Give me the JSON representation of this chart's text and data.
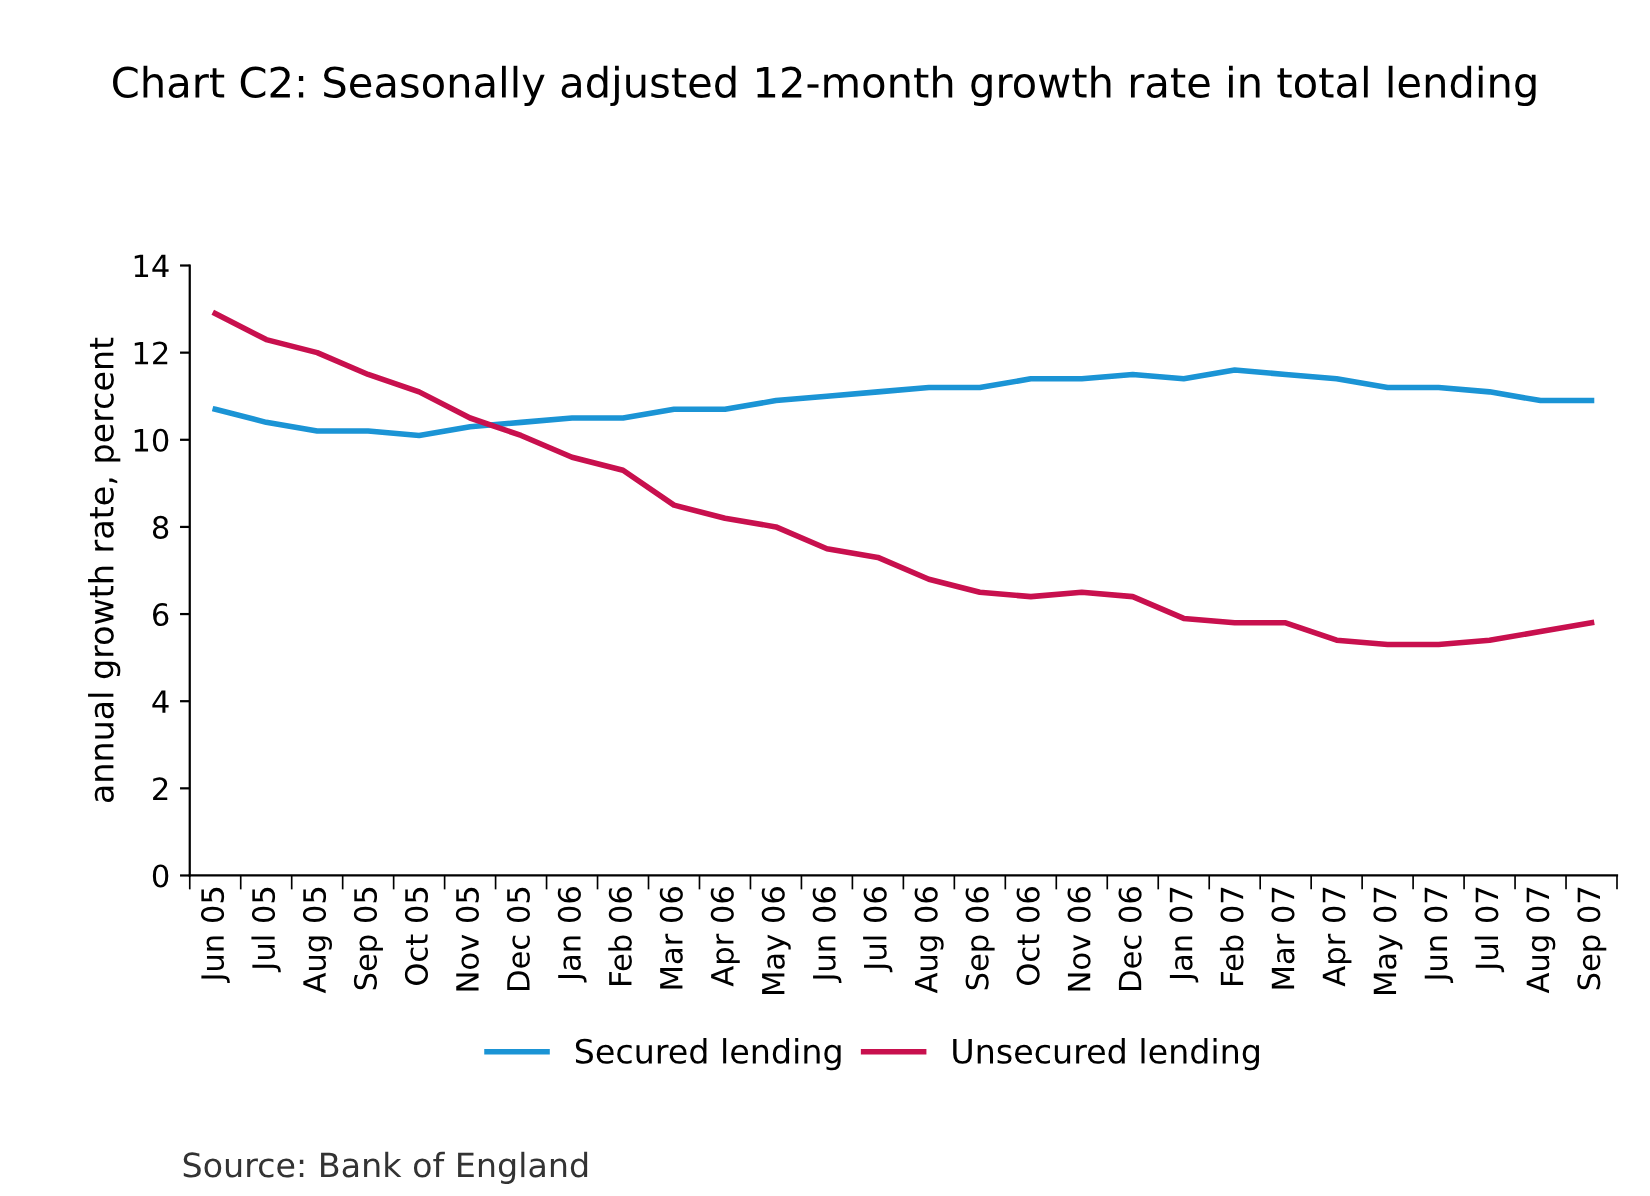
{
  "chart_data": {
    "type": "line",
    "title": "Chart C2: Seasonally adjusted 12-month growth rate in total lending",
    "ylabel": "annual growth rate, percent",
    "categories": [
      "Jun 05",
      "Jul 05",
      "Aug 05",
      "Sep 05",
      "Oct 05",
      "Nov 05",
      "Dec 05",
      "Jan 06",
      "Feb 06",
      "Mar 06",
      "Apr 06",
      "May 06",
      "Jun 06",
      "Jul 06",
      "Aug 06",
      "Sep 06",
      "Oct 06",
      "Nov 06",
      "Dec 06",
      "Jan 07",
      "Feb 07",
      "Mar 07",
      "Apr 07",
      "May 07",
      "Jun 07",
      "Jul 07",
      "Aug 07",
      "Sep 07"
    ],
    "series": [
      {
        "name": "Secured lending",
        "color": "#1b94d5",
        "values": [
          10.7,
          10.4,
          10.2,
          10.2,
          10.1,
          10.3,
          10.4,
          10.5,
          10.5,
          10.7,
          10.7,
          10.9,
          11.0,
          11.1,
          11.2,
          11.2,
          11.4,
          11.4,
          11.5,
          11.4,
          11.6,
          11.5,
          11.4,
          11.2,
          11.2,
          11.1,
          10.9,
          10.9
        ]
      },
      {
        "name": "Unsecured lending",
        "color": "#c8104e",
        "values": [
          12.9,
          12.3,
          12.0,
          11.5,
          11.1,
          10.5,
          10.1,
          9.6,
          9.3,
          8.5,
          8.2,
          8.0,
          7.5,
          7.3,
          6.8,
          6.5,
          6.4,
          6.5,
          6.4,
          5.9,
          5.8,
          5.8,
          5.4,
          5.3,
          5.3,
          5.4,
          5.6,
          5.8
        ]
      }
    ],
    "ylim": [
      0,
      14
    ],
    "yticks": [
      0,
      2,
      4,
      6,
      8,
      10,
      12,
      14
    ],
    "grid": false,
    "legend": "bottom",
    "marker": "none",
    "line_style": "solid",
    "annotations": [
      "Source: Bank of England"
    ]
  }
}
